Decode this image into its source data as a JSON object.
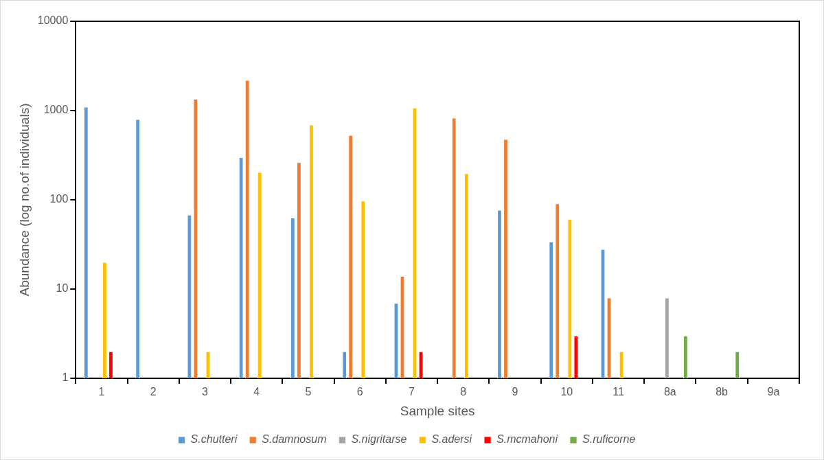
{
  "chart_data": {
    "type": "bar",
    "xlabel": "Sample sites",
    "ylabel": "Abundance (log no.of individuals)",
    "categories": [
      "1",
      "2",
      "3",
      "4",
      "5",
      "6",
      "7",
      "8",
      "9",
      "10",
      "11",
      "8a",
      "8b",
      "9a"
    ],
    "log": "y",
    "ylim": [
      1,
      10000
    ],
    "yticks": [
      1,
      10,
      100,
      1000,
      10000
    ],
    "grid": false,
    "legend": "bottom",
    "series": [
      {
        "name": "S.chutteri",
        "color": "#5b9bd5",
        "values": [
          1100,
          800,
          68,
          300,
          63,
          2,
          7,
          null,
          77,
          34,
          28,
          null,
          null,
          null
        ]
      },
      {
        "name": "S.damnosum",
        "color": "#ed7d31",
        "values": [
          null,
          null,
          1350,
          2200,
          264,
          530,
          14,
          830,
          480,
          91,
          8,
          null,
          null,
          null
        ]
      },
      {
        "name": "S.nigritarse",
        "color": "#a5a5a5",
        "values": [
          null,
          null,
          null,
          null,
          null,
          null,
          null,
          null,
          null,
          null,
          null,
          8,
          null,
          null
        ]
      },
      {
        "name": "S.adersi",
        "color": "#ffc000",
        "values": [
          20,
          null,
          2,
          205,
          695,
          98,
          1080,
          198,
          null,
          61,
          2,
          null,
          null,
          null
        ]
      },
      {
        "name": "S.mcmahoni",
        "color": "#ff0000",
        "values": [
          2,
          null,
          null,
          null,
          null,
          null,
          2,
          null,
          null,
          3,
          null,
          null,
          null,
          null
        ]
      },
      {
        "name": "S.ruficorne",
        "color": "#70ad47",
        "values": [
          null,
          null,
          null,
          null,
          null,
          null,
          null,
          null,
          null,
          null,
          null,
          3,
          2,
          null
        ]
      }
    ]
  }
}
